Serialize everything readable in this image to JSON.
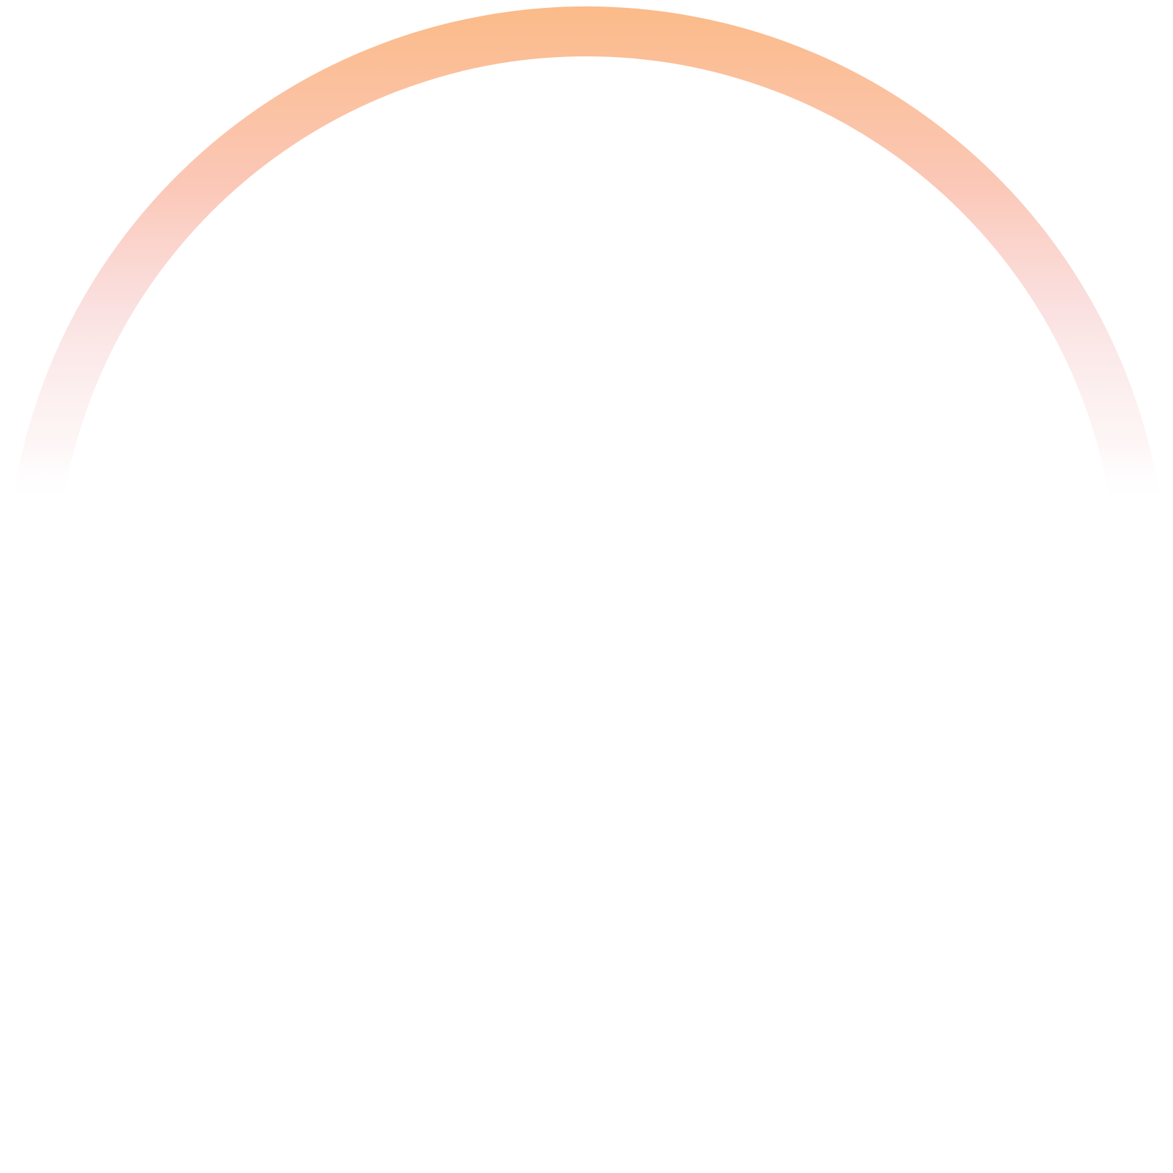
{
  "graphic": {
    "icon": "gradient-ring-arc-icon",
    "colors": {
      "gradient_top": "#FBBA87",
      "gradient_mid": "#FBC8B8",
      "gradient_fade": "#FADCDC",
      "gradient_bottom": "#FFFFFF",
      "background": "#FFFFFF"
    }
  }
}
